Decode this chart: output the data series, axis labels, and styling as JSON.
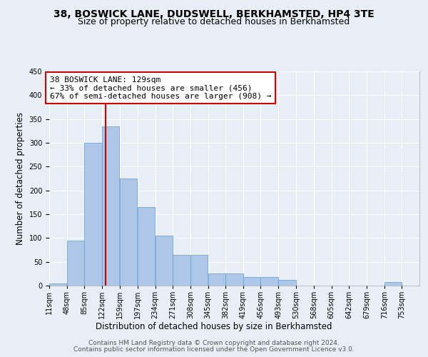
{
  "title": "38, BOSWICK LANE, DUDSWELL, BERKHAMSTED, HP4 3TE",
  "subtitle": "Size of property relative to detached houses in Berkhamsted",
  "xlabel": "Distribution of detached houses by size in Berkhamsted",
  "ylabel": "Number of detached properties",
  "bin_labels": [
    "11sqm",
    "48sqm",
    "85sqm",
    "122sqm",
    "159sqm",
    "197sqm",
    "234sqm",
    "271sqm",
    "308sqm",
    "345sqm",
    "382sqm",
    "419sqm",
    "456sqm",
    "493sqm",
    "530sqm",
    "568sqm",
    "605sqm",
    "642sqm",
    "679sqm",
    "716sqm",
    "753sqm"
  ],
  "bin_edges": [
    11,
    48,
    85,
    122,
    159,
    197,
    234,
    271,
    308,
    345,
    382,
    419,
    456,
    493,
    530,
    568,
    605,
    642,
    679,
    716,
    753
  ],
  "bar_heights": [
    5,
    95,
    300,
    335,
    225,
    165,
    105,
    65,
    65,
    25,
    25,
    18,
    18,
    12,
    0,
    0,
    0,
    0,
    0,
    8,
    0
  ],
  "bar_color": "#aec6e8",
  "bar_edge_color": "#5a9fd4",
  "property_line_x": 129,
  "property_line_color": "#cc0000",
  "annotation_line1": "38 BOSWICK LANE: 129sqm",
  "annotation_line2": "← 33% of detached houses are smaller (456)",
  "annotation_line3": "67% of semi-detached houses are larger (908) →",
  "annotation_box_color": "#cc0000",
  "ylim": [
    0,
    450
  ],
  "yticks": [
    0,
    50,
    100,
    150,
    200,
    250,
    300,
    350,
    400,
    450
  ],
  "footer_line1": "Contains HM Land Registry data © Crown copyright and database right 2024.",
  "footer_line2": "Contains public sector information licensed under the Open Government Licence v3.0.",
  "bg_color": "#e8eef5",
  "plot_bg_color": "#e8eef5",
  "grid_color": "#ffffff",
  "title_fontsize": 10,
  "subtitle_fontsize": 9,
  "axis_label_fontsize": 8.5,
  "tick_fontsize": 7,
  "footer_fontsize": 6.5,
  "annotation_fontsize": 8
}
